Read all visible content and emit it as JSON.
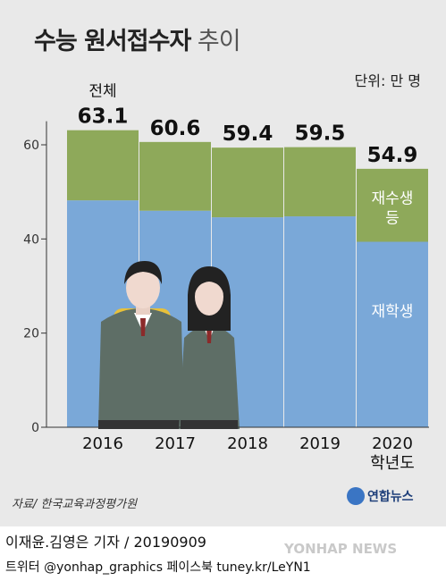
{
  "title_main": "수능 원서접수자",
  "title_sub": "추이",
  "unit": "단위: 만 명",
  "source": "자료/ 한국교육과정평가원",
  "logo": "연합뉴스",
  "credit": "이재윤.김영은 기자 / 20190909",
  "social": "트위터 @yonhap_graphics  페이스북 tuney.kr/LeYN1",
  "watermark": "YONHAP NEWS",
  "colors": {
    "current_students": "#7aa8d8",
    "repeat_etc": "#8ea95a",
    "background": "#e9e9e9"
  },
  "chart_data": {
    "type": "bar",
    "stacked": true,
    "categories": [
      "2016",
      "2017",
      "2018",
      "2019",
      "2020"
    ],
    "category_note": "학년도",
    "total_label": "전체",
    "totals": [
      63.1,
      60.6,
      59.4,
      59.5,
      54.9
    ],
    "series": [
      {
        "name": "재학생",
        "values": [
          48.2,
          46.0,
          44.6,
          44.8,
          39.4
        ]
      },
      {
        "name": "재수생 등",
        "values": [
          14.9,
          14.6,
          14.8,
          14.7,
          15.5
        ]
      }
    ],
    "yticks": [
      0,
      20,
      40,
      60
    ],
    "ylim": [
      0,
      65
    ],
    "grid": false
  }
}
